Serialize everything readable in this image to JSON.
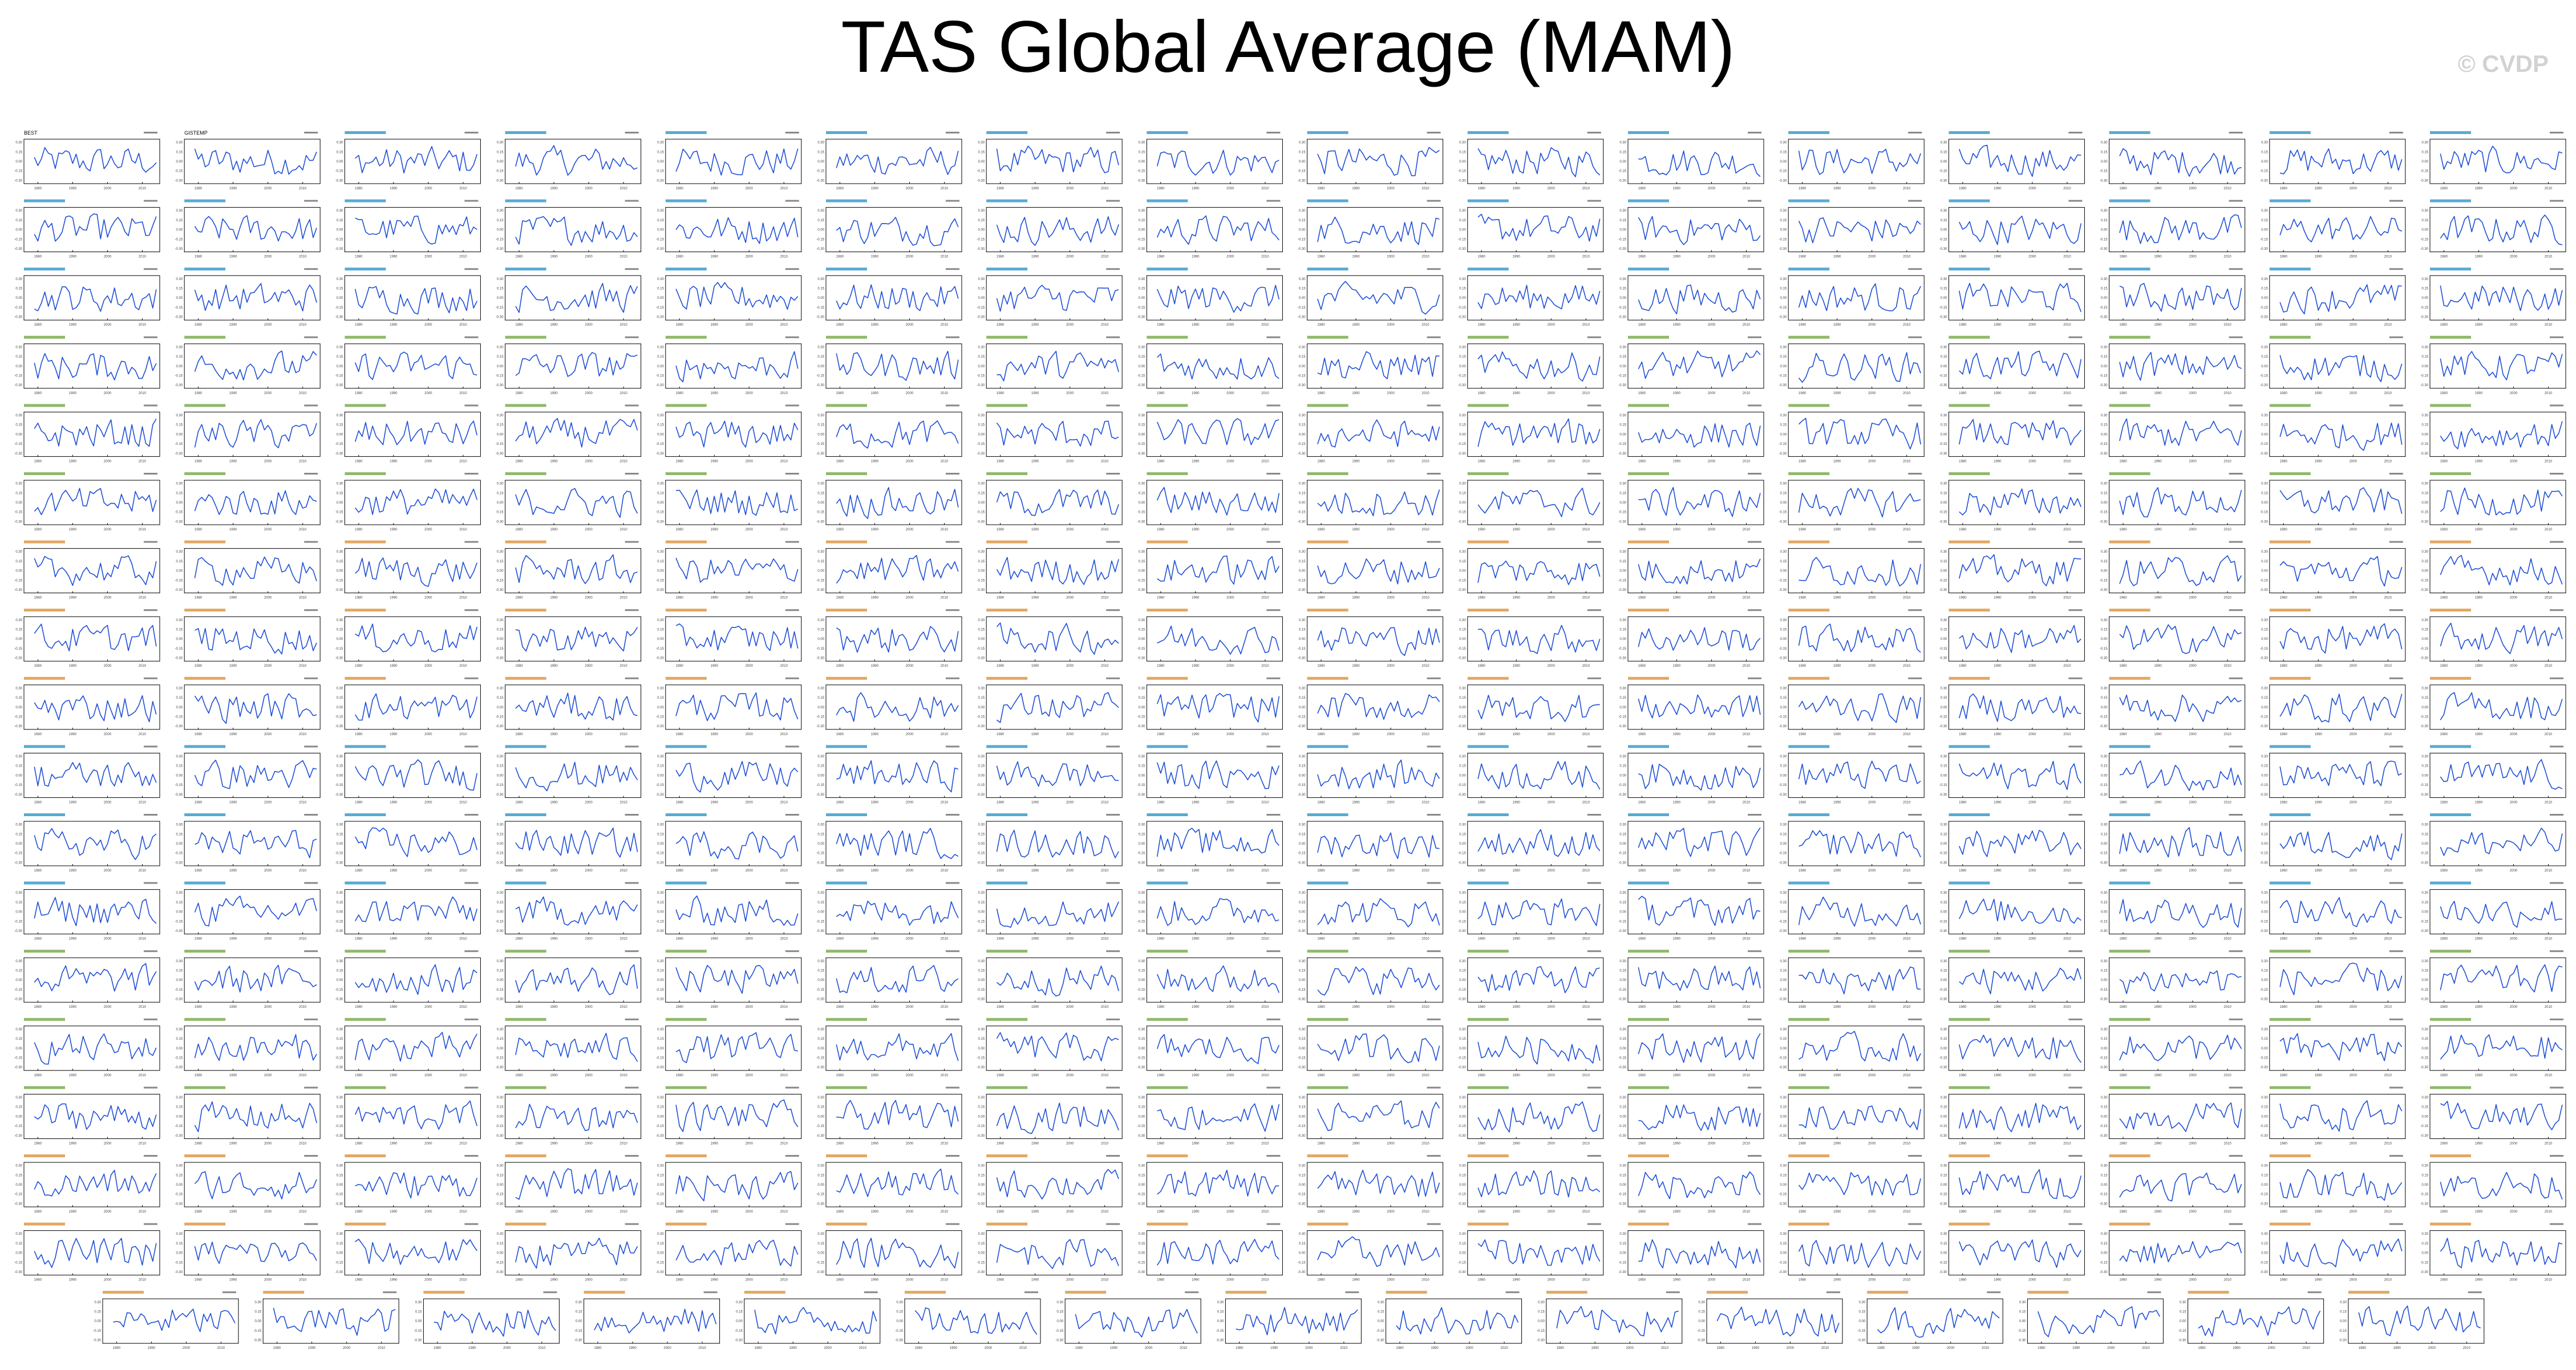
{
  "title": "TAS Global Average (MAM)",
  "watermark": "© CVDP",
  "colors": {
    "background": "#ffffff",
    "series": "#1f4fd6",
    "axes": "#000000",
    "tick_text": "#444444",
    "observation_label": "#000000",
    "model_label_family_1": "#1f8fc4",
    "model_label_family_2": "#6aa13a",
    "model_label_family_3": "#d98a2e"
  },
  "chart_data": {
    "type": "line",
    "layout": "small-multiples",
    "panel_rows": 18,
    "panels_per_full_row": 16,
    "panels_in_last_row": 15,
    "first_panel_labels": [
      "BEST",
      "GISTEMP"
    ],
    "shared_y_tick_labels": [
      "0.30",
      "0.15",
      "0.00",
      "-0.15",
      "-0.30"
    ],
    "shared_x_tick_labels": [
      "1980",
      "1990",
      "2000",
      "2010"
    ],
    "ylim": [
      -0.35,
      0.35
    ],
    "xlim": [
      1976,
      2015
    ],
    "series_style": "blue line, annual anomaly time series per panel",
    "grid": false,
    "legend": "none"
  }
}
